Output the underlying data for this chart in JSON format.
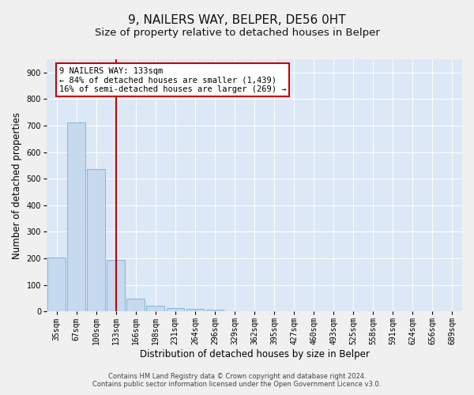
{
  "title": "9, NAILERS WAY, BELPER, DE56 0HT",
  "subtitle": "Size of property relative to detached houses in Belper",
  "xlabel": "Distribution of detached houses by size in Belper",
  "ylabel": "Number of detached properties",
  "bar_labels": [
    "35sqm",
    "67sqm",
    "100sqm",
    "133sqm",
    "166sqm",
    "198sqm",
    "231sqm",
    "264sqm",
    "296sqm",
    "329sqm",
    "362sqm",
    "395sqm",
    "427sqm",
    "460sqm",
    "493sqm",
    "525sqm",
    "558sqm",
    "591sqm",
    "624sqm",
    "656sqm",
    "689sqm"
  ],
  "bar_values": [
    203,
    713,
    537,
    193,
    47,
    22,
    12,
    10,
    8,
    0,
    0,
    0,
    0,
    0,
    0,
    0,
    0,
    0,
    0,
    0,
    0
  ],
  "bar_color": "#c6d9ee",
  "bar_edge_color": "#7aafd4",
  "red_line_index": 3,
  "red_line_color": "#cc0000",
  "ylim": [
    0,
    950
  ],
  "yticks": [
    0,
    100,
    200,
    300,
    400,
    500,
    600,
    700,
    800,
    900
  ],
  "annotation_title": "9 NAILERS WAY: 133sqm",
  "annotation_line1": "← 84% of detached houses are smaller (1,439)",
  "annotation_line2": "16% of semi-detached houses are larger (269) →",
  "annotation_box_color": "#ffffff",
  "annotation_box_edge": "#cc0000",
  "footer1": "Contains HM Land Registry data © Crown copyright and database right 2024.",
  "footer2": "Contains public sector information licensed under the Open Government Licence v3.0.",
  "bg_color": "#dce8f5",
  "grid_color": "#ffffff",
  "fig_bg_color": "#f0f0f0",
  "title_fontsize": 11,
  "subtitle_fontsize": 9.5,
  "axis_label_fontsize": 8.5,
  "tick_fontsize": 7,
  "annotation_fontsize": 7.5,
  "footer_fontsize": 6
}
